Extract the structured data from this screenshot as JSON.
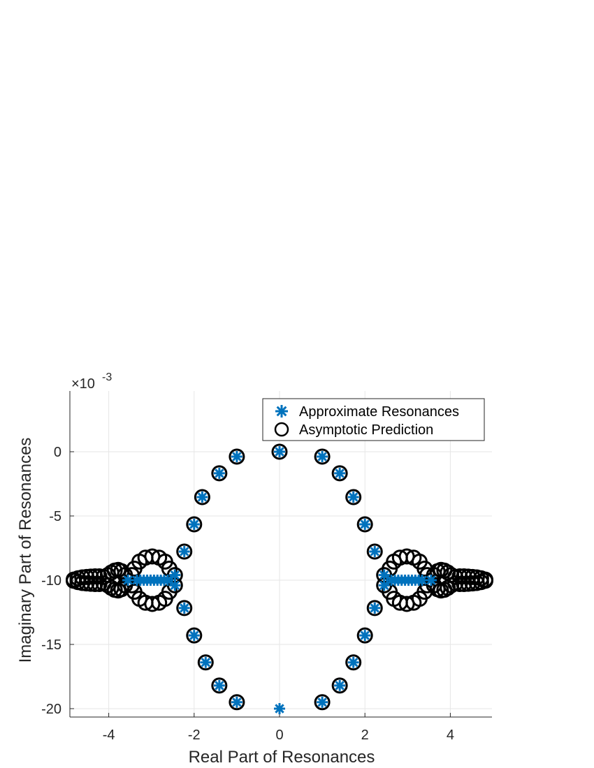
{
  "chart_data": {
    "type": "scatter",
    "title": "",
    "xlabel": "Real Part of Resonances",
    "ylabel": "Imaginary Part of Resonances",
    "y_exponent_label": "×10",
    "y_exponent_power": "-3",
    "xlim": [
      -4.92,
      4.98
    ],
    "ylim": [
      -20.7,
      4.7
    ],
    "x_ticks": [
      -4,
      -2,
      0,
      2,
      4
    ],
    "x_tick_labels": [
      "-4",
      "-2",
      "0",
      "2",
      "4"
    ],
    "y_ticks": [
      0,
      -5,
      -10,
      -15,
      -20
    ],
    "y_tick_labels": [
      "0",
      "-5",
      "-10",
      "-15",
      "-20"
    ],
    "grid": true,
    "legend_position": "northeast-inside",
    "colors": {
      "approximate": "#0072BD",
      "asymptotic": "#000000",
      "grid": "#e6e6e6",
      "axis": "#262626"
    },
    "series": [
      {
        "name": "Approximate Resonances",
        "marker": "asterisk",
        "color": "#0072BD",
        "points": [
          [
            0,
            0
          ],
          [
            1.0,
            -0.38
          ],
          [
            -1.0,
            -0.38
          ],
          [
            1.41,
            -1.68
          ],
          [
            -1.41,
            -1.68
          ],
          [
            1.73,
            -3.53
          ],
          [
            -1.81,
            -3.53
          ],
          [
            2.0,
            -5.65
          ],
          [
            -2.0,
            -5.65
          ],
          [
            2.23,
            -7.77
          ],
          [
            -2.23,
            -7.77
          ],
          [
            2.45,
            -9.6
          ],
          [
            -2.45,
            -9.6
          ],
          [
            2.45,
            -10.4
          ],
          [
            -2.45,
            -10.4
          ],
          [
            2.23,
            -12.17
          ],
          [
            -2.23,
            -12.17
          ],
          [
            2.0,
            -14.3
          ],
          [
            -2.0,
            -14.3
          ],
          [
            1.73,
            -16.4
          ],
          [
            -1.73,
            -16.4
          ],
          [
            1.41,
            -18.2
          ],
          [
            -1.41,
            -18.2
          ],
          [
            1.0,
            -19.5
          ],
          [
            -1.0,
            -19.5
          ],
          [
            0,
            -20
          ],
          [
            2.62,
            -10
          ],
          [
            2.7,
            -10
          ],
          [
            2.78,
            -10
          ],
          [
            2.86,
            -10
          ],
          [
            2.94,
            -10
          ],
          [
            3.02,
            -10
          ],
          [
            3.1,
            -10
          ],
          [
            3.18,
            -10
          ],
          [
            3.26,
            -10
          ],
          [
            3.34,
            -10
          ],
          [
            -2.62,
            -10
          ],
          [
            -2.7,
            -10
          ],
          [
            -2.78,
            -10
          ],
          [
            -2.86,
            -10
          ],
          [
            -2.94,
            -10
          ],
          [
            -3.02,
            -10
          ],
          [
            -3.1,
            -10
          ],
          [
            -3.18,
            -10
          ],
          [
            -3.26,
            -10
          ],
          [
            -3.34,
            -10
          ],
          [
            3.55,
            -10
          ],
          [
            -3.55,
            -10
          ]
        ]
      },
      {
        "name": "Asymptotic Prediction",
        "marker": "circle",
        "color": "#000000",
        "points": [
          [
            0,
            0
          ],
          [
            1.0,
            -0.38
          ],
          [
            -1.0,
            -0.38
          ],
          [
            1.41,
            -1.68
          ],
          [
            -1.41,
            -1.68
          ],
          [
            1.73,
            -3.53
          ],
          [
            -1.81,
            -3.53
          ],
          [
            2.0,
            -5.65
          ],
          [
            -2.0,
            -5.65
          ],
          [
            2.23,
            -7.77
          ],
          [
            -2.23,
            -7.77
          ],
          [
            2.45,
            -9.6
          ],
          [
            -2.45,
            -9.6
          ],
          [
            2.45,
            -10.4
          ],
          [
            -2.45,
            -10.4
          ],
          [
            2.23,
            -12.17
          ],
          [
            -2.23,
            -12.17
          ],
          [
            2.0,
            -14.3
          ],
          [
            -2.0,
            -14.3
          ],
          [
            1.73,
            -16.4
          ],
          [
            -1.73,
            -16.4
          ],
          [
            1.41,
            -18.2
          ],
          [
            -1.41,
            -18.2
          ],
          [
            1.0,
            -19.5
          ],
          [
            -1.0,
            -19.5
          ],
          [
            2.58,
            -9.1
          ],
          [
            2.68,
            -8.55
          ],
          [
            2.82,
            -8.25
          ],
          [
            2.98,
            -8.15
          ],
          [
            3.14,
            -8.25
          ],
          [
            3.28,
            -8.55
          ],
          [
            3.4,
            -9.1
          ],
          [
            3.46,
            -9.6
          ],
          [
            2.58,
            -10.9
          ],
          [
            2.68,
            -11.45
          ],
          [
            2.82,
            -11.75
          ],
          [
            2.98,
            -11.85
          ],
          [
            3.14,
            -11.75
          ],
          [
            3.28,
            -11.45
          ],
          [
            3.4,
            -10.9
          ],
          [
            3.46,
            -10.4
          ],
          [
            -2.58,
            -9.1
          ],
          [
            -2.68,
            -8.55
          ],
          [
            -2.82,
            -8.25
          ],
          [
            -2.98,
            -8.15
          ],
          [
            -3.14,
            -8.25
          ],
          [
            -3.28,
            -8.55
          ],
          [
            -3.4,
            -9.1
          ],
          [
            -3.46,
            -9.6
          ],
          [
            -2.58,
            -10.9
          ],
          [
            -2.68,
            -11.45
          ],
          [
            -2.82,
            -11.75
          ],
          [
            -2.98,
            -11.85
          ],
          [
            -3.14,
            -11.75
          ],
          [
            -3.28,
            -11.45
          ],
          [
            -3.4,
            -10.9
          ],
          [
            -3.46,
            -10.4
          ],
          [
            3.62,
            -9.6
          ],
          [
            3.7,
            -9.3
          ],
          [
            3.78,
            -9.2
          ],
          [
            3.86,
            -9.25
          ],
          [
            3.94,
            -9.4
          ],
          [
            4.02,
            -9.6
          ],
          [
            3.62,
            -10.4
          ],
          [
            3.7,
            -10.7
          ],
          [
            3.78,
            -10.8
          ],
          [
            3.86,
            -10.75
          ],
          [
            3.94,
            -10.6
          ],
          [
            4.02,
            -10.4
          ],
          [
            -3.62,
            -9.6
          ],
          [
            -3.7,
            -9.3
          ],
          [
            -3.78,
            -9.2
          ],
          [
            -3.86,
            -9.25
          ],
          [
            -3.94,
            -9.4
          ],
          [
            -4.02,
            -9.6
          ],
          [
            -3.62,
            -10.4
          ],
          [
            -3.7,
            -10.7
          ],
          [
            -3.78,
            -10.8
          ],
          [
            -3.86,
            -10.75
          ],
          [
            -3.94,
            -10.6
          ],
          [
            -4.02,
            -10.4
          ],
          [
            4.12,
            -9.75
          ],
          [
            4.22,
            -9.7
          ],
          [
            4.32,
            -9.7
          ],
          [
            4.42,
            -9.72
          ],
          [
            4.52,
            -9.75
          ],
          [
            4.62,
            -9.78
          ],
          [
            4.72,
            -9.85
          ],
          [
            4.82,
            -9.95
          ],
          [
            4.12,
            -10.25
          ],
          [
            4.22,
            -10.3
          ],
          [
            4.32,
            -10.3
          ],
          [
            4.42,
            -10.28
          ],
          [
            4.52,
            -10.25
          ],
          [
            4.62,
            -10.22
          ],
          [
            4.72,
            -10.15
          ],
          [
            4.82,
            -10.05
          ],
          [
            -4.12,
            -9.75
          ],
          [
            -4.22,
            -9.7
          ],
          [
            -4.32,
            -9.7
          ],
          [
            -4.42,
            -9.72
          ],
          [
            -4.52,
            -9.75
          ],
          [
            -4.62,
            -9.78
          ],
          [
            -4.72,
            -9.85
          ],
          [
            -4.82,
            -9.95
          ],
          [
            -4.12,
            -10.25
          ],
          [
            -4.22,
            -10.3
          ],
          [
            -4.32,
            -10.3
          ],
          [
            -4.42,
            -10.28
          ],
          [
            -4.52,
            -10.25
          ],
          [
            -4.62,
            -10.22
          ],
          [
            -4.72,
            -10.15
          ],
          [
            -4.82,
            -10.05
          ]
        ]
      }
    ]
  },
  "legend": {
    "items": [
      {
        "label": "Approximate Resonances",
        "marker": "asterisk"
      },
      {
        "label": "Asymptotic Prediction",
        "marker": "circle"
      }
    ]
  }
}
